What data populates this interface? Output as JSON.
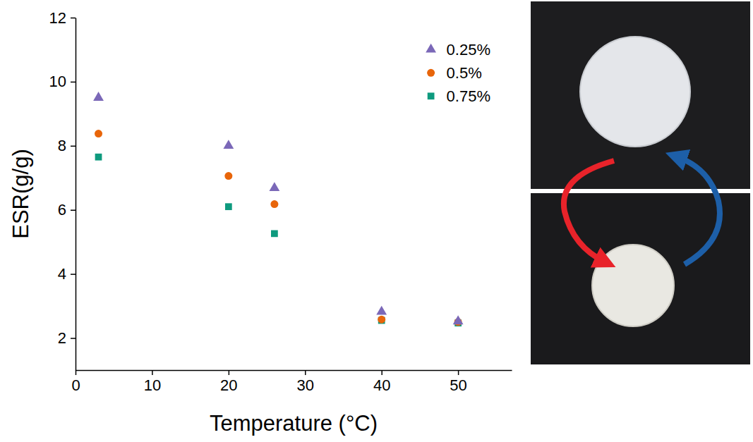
{
  "chart_data": {
    "type": "scatter",
    "x_label": "Temperature (°C)",
    "y_label": "ESR(g/g)",
    "x": [
      3,
      20,
      26,
      40,
      50
    ],
    "series": [
      {
        "name": "0.25%",
        "color": "#7b68b8",
        "marker": "triangle",
        "values": [
          9.5,
          8.0,
          6.68,
          2.82,
          2.52
        ]
      },
      {
        "name": "0.5%",
        "color": "#e8650a",
        "marker": "circle",
        "values": [
          8.38,
          7.06,
          6.18,
          2.58,
          2.5
        ]
      },
      {
        "name": "0.75%",
        "color": "#0e9a7e",
        "marker": "square",
        "values": [
          7.65,
          6.1,
          5.26,
          2.55,
          2.47
        ]
      }
    ],
    "xlim": [
      0,
      57
    ],
    "ylim": [
      1,
      12
    ],
    "xticks": [
      0,
      10,
      20,
      30,
      40,
      50
    ],
    "yticks": [
      2,
      4,
      6,
      8,
      10,
      12
    ],
    "grid": false,
    "legend": "upper right"
  }
}
